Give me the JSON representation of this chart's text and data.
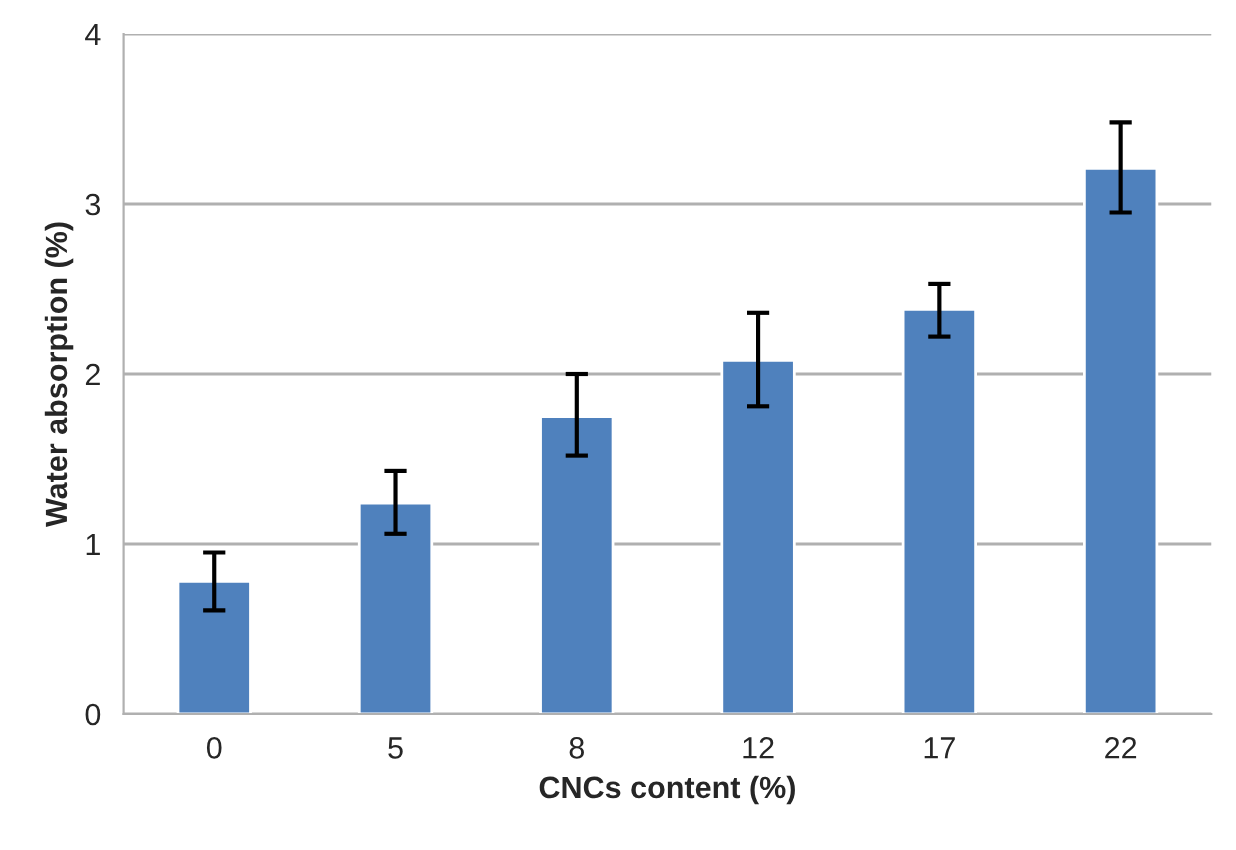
{
  "chart_data": {
    "type": "bar",
    "xlabel": "CNCs content (%)",
    "ylabel": "Water absorption (%)",
    "categories": [
      "0",
      "5",
      "8",
      "12",
      "17",
      "22"
    ],
    "values": [
      0.78,
      1.24,
      1.75,
      2.08,
      2.38,
      3.21
    ],
    "errors": [
      [
        0.61,
        0.95
      ],
      [
        1.06,
        1.43
      ],
      [
        1.52,
        2.0
      ],
      [
        1.81,
        2.36
      ],
      [
        2.22,
        2.53
      ],
      [
        2.95,
        3.48
      ]
    ],
    "color": "#4f81bd",
    "ylim": [
      0,
      4
    ],
    "yticks": [
      0,
      1,
      2,
      3,
      4
    ],
    "grid": "y",
    "legend": false
  }
}
